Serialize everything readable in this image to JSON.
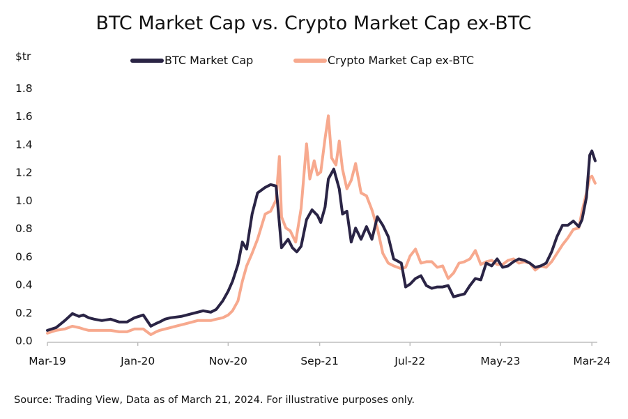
{
  "chart_data": {
    "type": "line",
    "title": "BTC Market Cap vs. Crypto Market Cap ex-BTC",
    "ylabel": "$tr",
    "xlabel": "",
    "ylim": [
      0,
      1.8
    ],
    "yticks": [
      "0.0",
      "0.2",
      "0.4",
      "0.6",
      "0.8",
      "1.0",
      "1.2",
      "1.4",
      "1.6",
      "1.8"
    ],
    "ytick_values": [
      0,
      0.2,
      0.4,
      0.6,
      0.8,
      1.0,
      1.2,
      1.4,
      1.6,
      1.8
    ],
    "xlim": [
      2019.17,
      2024.22
    ],
    "xticks": [
      "Mar-19",
      "Jan-20",
      "Nov-20",
      "Sep-21",
      "Jul-22",
      "May-23",
      "Mar-24"
    ],
    "xtick_values": [
      2019.17,
      2020.0,
      2020.83,
      2021.67,
      2022.5,
      2023.33,
      2024.17
    ],
    "legend_position": "top-center",
    "source_note": "Source: Trading View, Data as of March 21, 2024. For illustrative purposes only.",
    "series": [
      {
        "name": "BTC Market Cap",
        "color": "#2a2445",
        "x": [
          2019.17,
          2019.25,
          2019.33,
          2019.4,
          2019.46,
          2019.5,
          2019.55,
          2019.6,
          2019.67,
          2019.75,
          2019.83,
          2019.9,
          2019.97,
          2020.05,
          2020.12,
          2020.17,
          2020.2,
          2020.25,
          2020.3,
          2020.4,
          2020.45,
          2020.55,
          2020.6,
          2020.67,
          2020.72,
          2020.78,
          2020.83,
          2020.87,
          2020.92,
          2020.96,
          2021.0,
          2021.05,
          2021.1,
          2021.17,
          2021.22,
          2021.27,
          2021.32,
          2021.38,
          2021.42,
          2021.46,
          2021.5,
          2021.55,
          2021.6,
          2021.65,
          2021.68,
          2021.72,
          2021.75,
          2021.8,
          2021.85,
          2021.88,
          2021.92,
          2021.96,
          2022.0,
          2022.05,
          2022.1,
          2022.15,
          2022.2,
          2022.25,
          2022.3,
          2022.35,
          2022.42,
          2022.46,
          2022.5,
          2022.55,
          2022.6,
          2022.65,
          2022.7,
          2022.75,
          2022.8,
          2022.85,
          2022.9,
          2022.95,
          2023.0,
          2023.05,
          2023.1,
          2023.15,
          2023.2,
          2023.25,
          2023.3,
          2023.35,
          2023.4,
          2023.45,
          2023.5,
          2023.55,
          2023.6,
          2023.65,
          2023.7,
          2023.75,
          2023.8,
          2023.85,
          2023.9,
          2023.95,
          2024.0,
          2024.05,
          2024.08,
          2024.12,
          2024.15,
          2024.17,
          2024.2
        ],
        "values": [
          0.07,
          0.09,
          0.14,
          0.19,
          0.17,
          0.18,
          0.16,
          0.15,
          0.14,
          0.15,
          0.13,
          0.13,
          0.16,
          0.18,
          0.1,
          0.12,
          0.13,
          0.15,
          0.16,
          0.17,
          0.18,
          0.2,
          0.21,
          0.2,
          0.22,
          0.28,
          0.35,
          0.42,
          0.54,
          0.7,
          0.65,
          0.9,
          1.05,
          1.09,
          1.11,
          1.1,
          0.66,
          0.72,
          0.66,
          0.63,
          0.67,
          0.86,
          0.93,
          0.89,
          0.84,
          0.95,
          1.15,
          1.22,
          1.08,
          0.9,
          0.92,
          0.7,
          0.8,
          0.72,
          0.81,
          0.72,
          0.88,
          0.82,
          0.74,
          0.58,
          0.55,
          0.38,
          0.4,
          0.44,
          0.46,
          0.39,
          0.37,
          0.38,
          0.38,
          0.39,
          0.31,
          0.32,
          0.33,
          0.39,
          0.44,
          0.43,
          0.55,
          0.53,
          0.58,
          0.52,
          0.53,
          0.56,
          0.58,
          0.57,
          0.55,
          0.52,
          0.53,
          0.55,
          0.63,
          0.74,
          0.82,
          0.82,
          0.85,
          0.81,
          0.86,
          1.02,
          1.32,
          1.35,
          1.28
        ]
      },
      {
        "name": "Crypto Market Cap ex-BTC",
        "color": "#f7a98e",
        "x": [
          2019.17,
          2019.25,
          2019.33,
          2019.4,
          2019.46,
          2019.5,
          2019.55,
          2019.6,
          2019.67,
          2019.75,
          2019.83,
          2019.9,
          2019.97,
          2020.05,
          2020.12,
          2020.17,
          2020.2,
          2020.25,
          2020.3,
          2020.4,
          2020.45,
          2020.55,
          2020.6,
          2020.67,
          2020.72,
          2020.78,
          2020.83,
          2020.87,
          2020.92,
          2020.96,
          2021.0,
          2021.05,
          2021.1,
          2021.17,
          2021.22,
          2021.27,
          2021.3,
          2021.32,
          2021.36,
          2021.4,
          2021.45,
          2021.5,
          2021.55,
          2021.58,
          2021.62,
          2021.65,
          2021.68,
          2021.72,
          2021.75,
          2021.78,
          2021.82,
          2021.85,
          2021.88,
          2021.92,
          2021.96,
          2022.0,
          2022.05,
          2022.1,
          2022.15,
          2022.2,
          2022.25,
          2022.3,
          2022.35,
          2022.42,
          2022.46,
          2022.5,
          2022.55,
          2022.6,
          2022.65,
          2022.7,
          2022.75,
          2022.8,
          2022.85,
          2022.9,
          2022.95,
          2023.0,
          2023.05,
          2023.1,
          2023.15,
          2023.2,
          2023.25,
          2023.3,
          2023.35,
          2023.4,
          2023.45,
          2023.5,
          2023.55,
          2023.6,
          2023.65,
          2023.7,
          2023.75,
          2023.8,
          2023.85,
          2023.9,
          2023.95,
          2024.0,
          2024.05,
          2024.08,
          2024.12,
          2024.15,
          2024.17,
          2024.2
        ],
        "values": [
          0.05,
          0.07,
          0.08,
          0.1,
          0.09,
          0.08,
          0.07,
          0.07,
          0.07,
          0.07,
          0.06,
          0.06,
          0.08,
          0.08,
          0.04,
          0.06,
          0.07,
          0.08,
          0.09,
          0.11,
          0.12,
          0.14,
          0.14,
          0.14,
          0.15,
          0.16,
          0.18,
          0.21,
          0.28,
          0.42,
          0.53,
          0.62,
          0.72,
          0.9,
          0.92,
          1.0,
          1.31,
          0.88,
          0.8,
          0.78,
          0.7,
          0.94,
          1.4,
          1.15,
          1.28,
          1.18,
          1.2,
          1.44,
          1.6,
          1.3,
          1.25,
          1.42,
          1.22,
          1.08,
          1.14,
          1.26,
          1.05,
          1.03,
          0.93,
          0.8,
          0.62,
          0.55,
          0.53,
          0.51,
          0.52,
          0.6,
          0.65,
          0.55,
          0.56,
          0.56,
          0.52,
          0.53,
          0.44,
          0.48,
          0.55,
          0.56,
          0.58,
          0.64,
          0.54,
          0.56,
          0.57,
          0.54,
          0.54,
          0.57,
          0.58,
          0.55,
          0.56,
          0.55,
          0.5,
          0.53,
          0.52,
          0.56,
          0.62,
          0.68,
          0.73,
          0.79,
          0.8,
          0.92,
          1.05,
          1.16,
          1.17,
          1.12
        ]
      }
    ]
  }
}
